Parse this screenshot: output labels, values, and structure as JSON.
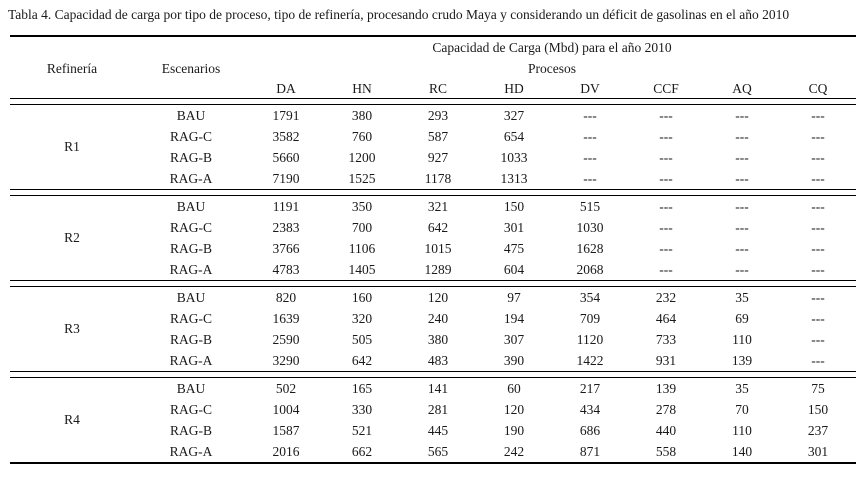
{
  "title": "Tabla 4. Capacidad de carga por tipo de proceso, tipo de refinería, procesando crudo Maya y considerando un déficit de gasolinas en el año 2010",
  "colors": {
    "background": "#ffffff",
    "text": "#1a1a1a",
    "rule": "#000000"
  },
  "table": {
    "header": {
      "refineria": "Refinería",
      "escenarios": "Escenarios",
      "capacidad": "Capacidad de Carga (Mbd) para el año 2010",
      "procesos": "Procesos",
      "process_columns": [
        "DA",
        "HN",
        "RC",
        "HD",
        "DV",
        "CCF",
        "AQ",
        "CQ"
      ]
    },
    "empty_value": "---",
    "blocks": [
      {
        "refinery": "R1",
        "rows": [
          {
            "scenario": "BAU",
            "values": [
              "1791",
              "380",
              "293",
              "327",
              "---",
              "---",
              "---",
              "---"
            ]
          },
          {
            "scenario": "RAG-C",
            "values": [
              "3582",
              "760",
              "587",
              "654",
              "---",
              "---",
              "---",
              "---"
            ]
          },
          {
            "scenario": "RAG-B",
            "values": [
              "5660",
              "1200",
              "927",
              "1033",
              "---",
              "---",
              "---",
              "---"
            ]
          },
          {
            "scenario": "RAG-A",
            "values": [
              "7190",
              "1525",
              "1178",
              "1313",
              "---",
              "---",
              "---",
              "---"
            ]
          }
        ]
      },
      {
        "refinery": "R2",
        "rows": [
          {
            "scenario": "BAU",
            "values": [
              "1191",
              "350",
              "321",
              "150",
              "515",
              "---",
              "---",
              "---"
            ]
          },
          {
            "scenario": "RAG-C",
            "values": [
              "2383",
              "700",
              "642",
              "301",
              "1030",
              "---",
              "---",
              "---"
            ]
          },
          {
            "scenario": "RAG-B",
            "values": [
              "3766",
              "1106",
              "1015",
              "475",
              "1628",
              "---",
              "---",
              "---"
            ]
          },
          {
            "scenario": "RAG-A",
            "values": [
              "4783",
              "1405",
              "1289",
              "604",
              "2068",
              "---",
              "---",
              "---"
            ]
          }
        ]
      },
      {
        "refinery": "R3",
        "rows": [
          {
            "scenario": "BAU",
            "values": [
              "820",
              "160",
              "120",
              "97",
              "354",
              "232",
              "35",
              "---"
            ]
          },
          {
            "scenario": "RAG-C",
            "values": [
              "1639",
              "320",
              "240",
              "194",
              "709",
              "464",
              "69",
              "---"
            ]
          },
          {
            "scenario": "RAG-B",
            "values": [
              "2590",
              "505",
              "380",
              "307",
              "1120",
              "733",
              "110",
              "---"
            ]
          },
          {
            "scenario": "RAG-A",
            "values": [
              "3290",
              "642",
              "483",
              "390",
              "1422",
              "931",
              "139",
              "---"
            ]
          }
        ]
      },
      {
        "refinery": "R4",
        "rows": [
          {
            "scenario": "BAU",
            "values": [
              "502",
              "165",
              "141",
              "60",
              "217",
              "139",
              "35",
              "75"
            ]
          },
          {
            "scenario": "RAG-C",
            "values": [
              "1004",
              "330",
              "281",
              "120",
              "434",
              "278",
              "70",
              "150"
            ]
          },
          {
            "scenario": "RAG-B",
            "values": [
              "1587",
              "521",
              "445",
              "190",
              "686",
              "440",
              "110",
              "237"
            ]
          },
          {
            "scenario": "RAG-A",
            "values": [
              "2016",
              "662",
              "565",
              "242",
              "871",
              "558",
              "140",
              "301"
            ]
          }
        ]
      }
    ]
  }
}
